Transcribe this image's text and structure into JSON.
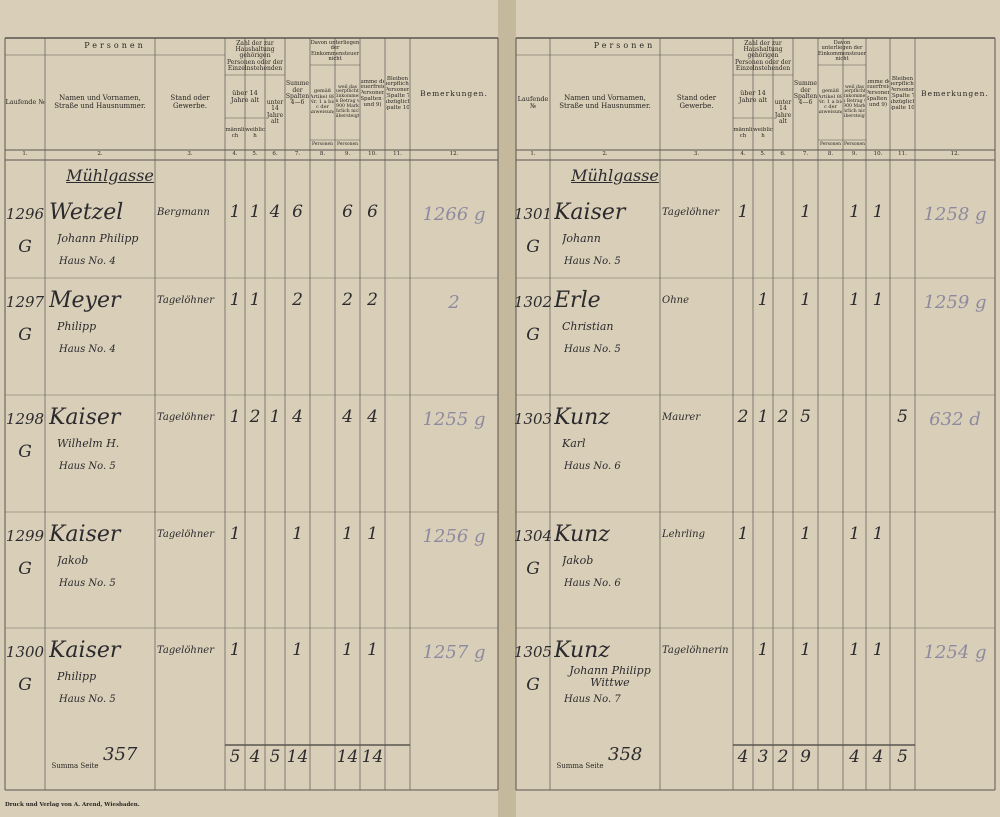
{
  "header": {
    "persons": "Personen",
    "col1": "Laufende №",
    "col2": "Namen und Vornamen, Straße und Hausnummer.",
    "col3": "Stand oder Gewerbe.",
    "household": "Zahl der zur Haushaltung gehörigen Personen oder der Einzelnstehenden",
    "over14": "über 14 Jahre alt",
    "male": "männlich",
    "female": "weiblich",
    "under14": "unter 14 Jahre alt",
    "col7": "Summe der Spalten 4—6",
    "exempt": "Davon unterliegen der Einkommensteuer nicht",
    "col8": "gemäß Artikel 88 Nr. 1 a bis c der Anweisung",
    "col9": "weil das steuerpflichtige Einkommen den Betrag von 900 Mark jährlich nicht übersteigt",
    "persons_unit": "Personen",
    "col10": "Summe der steuerfreien Personen (Spalten 8 und 9)",
    "col11": "Bleiben steuerpflichtige Personen (Spalte 7 abzüglich Spalte 10)",
    "col12": "Bemerkungen.",
    "numbers": [
      "1.",
      "2.",
      "3.",
      "4.",
      "5.",
      "6.",
      "7.",
      "8.",
      "9.",
      "10.",
      "11.",
      "12."
    ]
  },
  "pages": [
    {
      "street": "Mühlgasse",
      "sum_label": "Summa Seite",
      "sum_page": "357",
      "sums": {
        "4": "5",
        "5": "4",
        "6": "5",
        "7": "14",
        "9": "14",
        "10": "14"
      },
      "entries": [
        {
          "number": "1296",
          "mark": "G",
          "name": "Wetzel",
          "given": "Johann Philipp",
          "house": "Haus No. 4",
          "stand": "Bergmann",
          "cols": {
            "4": "1",
            "5": "1",
            "6": "4",
            "7": "6",
            "9": "6",
            "10": "6"
          },
          "remark": "1266 g"
        },
        {
          "number": "1297",
          "mark": "G",
          "name": "Meyer",
          "given": "Philipp",
          "house": "Haus No. 4",
          "stand": "Tagelöhner",
          "cols": {
            "4": "1",
            "5": "1",
            "7": "2",
            "9": "2",
            "10": "2"
          },
          "remark": "2"
        },
        {
          "number": "1298",
          "mark": "G",
          "name": "Kaiser",
          "given": "Wilhelm H.",
          "house": "Haus No. 5",
          "stand": "Tagelöhner",
          "cols": {
            "4": "1",
            "5": "2",
            "6": "1",
            "7": "4",
            "9": "4",
            "10": "4"
          },
          "remark": "1255 g"
        },
        {
          "number": "1299",
          "mark": "G",
          "name": "Kaiser",
          "given": "Jakob",
          "house": "Haus No. 5",
          "stand": "Tagelöhner",
          "cols": {
            "4": "1",
            "7": "1",
            "9": "1",
            "10": "1"
          },
          "remark": "1256 g"
        },
        {
          "number": "1300",
          "mark": "G",
          "name": "Kaiser",
          "given": "Philipp",
          "house": "Haus No. 5",
          "stand": "Tagelöhner",
          "cols": {
            "4": "1",
            "7": "1",
            "9": "1",
            "10": "1"
          },
          "remark": "1257 g"
        }
      ]
    },
    {
      "street": "Mühlgasse",
      "sum_label": "Summa Seite",
      "sum_page": "358",
      "sums": {
        "4": "4",
        "5": "3",
        "6": "2",
        "7": "9",
        "9": "4",
        "10": "4",
        "11": "5"
      },
      "entries": [
        {
          "number": "1301",
          "mark": "G",
          "name": "Kaiser",
          "given": "Johann",
          "house": "Haus No. 5",
          "stand": "Tagelöhner",
          "cols": {
            "4": "1",
            "7": "1",
            "9": "1",
            "10": "1"
          },
          "remark": "1258 g"
        },
        {
          "number": "1302",
          "mark": "G",
          "name": "Erle",
          "given": "Christian",
          "house": "Haus No. 5",
          "stand": "Ohne",
          "cols": {
            "5": "1",
            "7": "1",
            "9": "1",
            "10": "1"
          },
          "remark": "1259 g"
        },
        {
          "number": "1303",
          "name": "Kunz",
          "given": "Karl",
          "house": "Haus No. 6",
          "stand": "Maurer",
          "cols": {
            "4": "2",
            "5": "1",
            "6": "2",
            "7": "5",
            "11": "5"
          },
          "remark": "632 d"
        },
        {
          "number": "1304",
          "mark": "G",
          "name": "Kunz",
          "given": "Jakob",
          "house": "Haus No. 6",
          "stand": "Lehrling",
          "cols": {
            "4": "1",
            "7": "1",
            "9": "1",
            "10": "1"
          }
        },
        {
          "number": "1305",
          "mark": "G",
          "name": "Kunz",
          "given": "Johann Philipp Wittwe",
          "house": "Haus No. 7",
          "stand": "Tagelöhnerin",
          "cols": {
            "5": "1",
            "7": "1",
            "9": "1",
            "10": "1"
          },
          "remark": "1254 g"
        }
      ]
    }
  ],
  "imprint": "Druck und Verlag von A. Arend, Wiesbaden."
}
